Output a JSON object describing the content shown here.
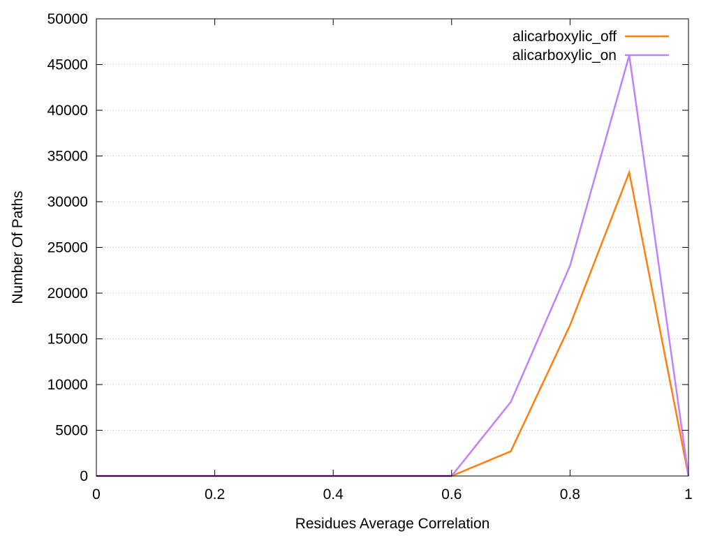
{
  "chart_data": {
    "type": "line",
    "title": "",
    "xlabel": "Residues Average Correlation",
    "ylabel": "Number Of Paths",
    "xlim": [
      0,
      1
    ],
    "ylim": [
      0,
      50000
    ],
    "x_ticks": [
      "0",
      "0.2",
      "0.4",
      "0.6",
      "0.8",
      "1"
    ],
    "x_tick_values": [
      0,
      0.2,
      0.4,
      0.6,
      0.8,
      1
    ],
    "y_ticks": [
      "0",
      "5000",
      "10000",
      "15000",
      "20000",
      "25000",
      "30000",
      "35000",
      "40000",
      "45000",
      "50000"
    ],
    "y_tick_values": [
      0,
      5000,
      10000,
      15000,
      20000,
      25000,
      30000,
      35000,
      40000,
      45000,
      50000
    ],
    "grid": "horizontal dotted",
    "legend_position": "top-right",
    "x": [
      0,
      0.1,
      0.2,
      0.3,
      0.4,
      0.5,
      0.6,
      0.7,
      0.8,
      0.9,
      1.0
    ],
    "series": [
      {
        "name": "alicarboxylic_off",
        "color": "#ff7f0e",
        "values": [
          0,
          0,
          0,
          0,
          0,
          0,
          0,
          2700,
          16500,
          33200,
          0
        ]
      },
      {
        "name": "alicarboxylic_on",
        "color": "#c080ff",
        "values": [
          0,
          0,
          0,
          0,
          0,
          0,
          0,
          8100,
          23000,
          46000,
          0
        ]
      }
    ],
    "baseline_color": "#6a0dad"
  }
}
